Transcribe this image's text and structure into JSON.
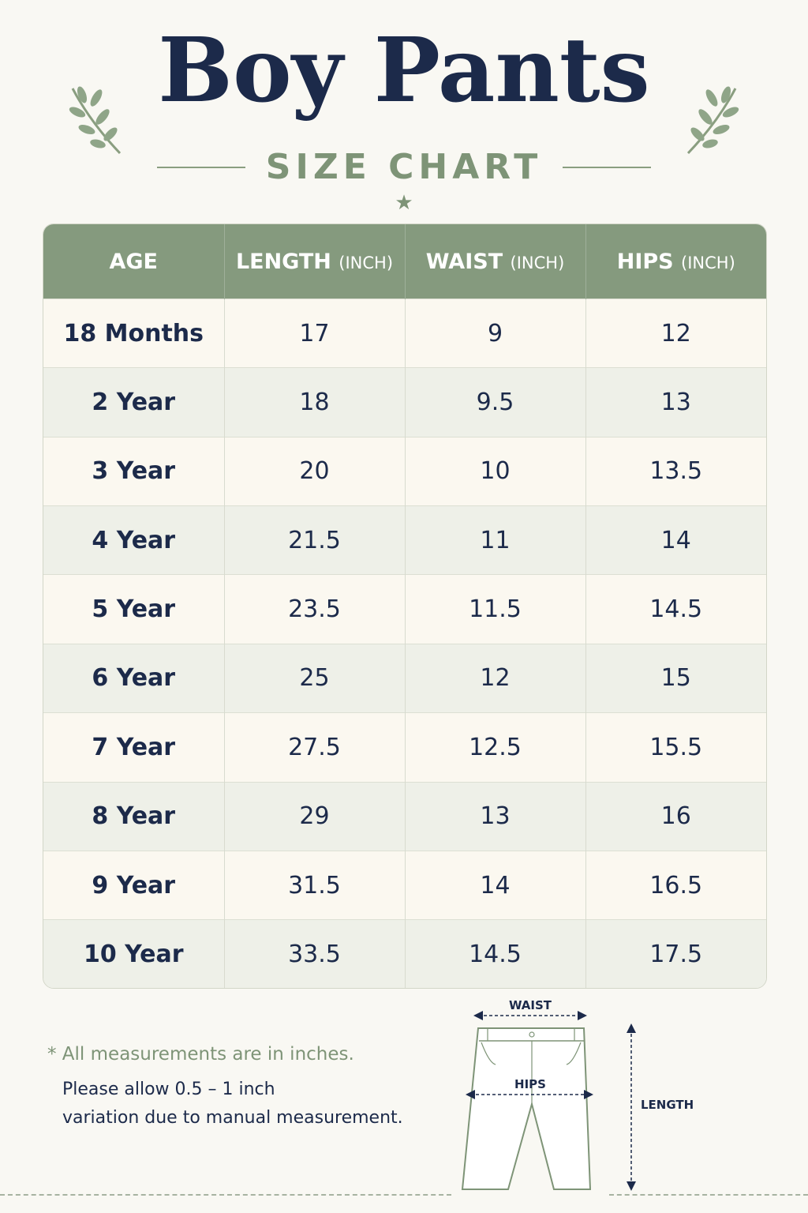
{
  "header": {
    "title": "Boy Pants",
    "subtitle": "SIZE CHART"
  },
  "table": {
    "columns": [
      {
        "label": "AGE",
        "unit": ""
      },
      {
        "label": "LENGTH",
        "unit": "(INCH)"
      },
      {
        "label": "WAIST",
        "unit": "(INCH)"
      },
      {
        "label": "HIPS",
        "unit": "(INCH)"
      }
    ],
    "rows": [
      [
        "18 Months",
        "17",
        "9",
        "12"
      ],
      [
        "2 Year",
        "18",
        "9.5",
        "13"
      ],
      [
        "3 Year",
        "20",
        "10",
        "13.5"
      ],
      [
        "4 Year",
        "21.5",
        "11",
        "14"
      ],
      [
        "5 Year",
        "23.5",
        "11.5",
        "14.5"
      ],
      [
        "6 Year",
        "25",
        "12",
        "15"
      ],
      [
        "7 Year",
        "27.5",
        "12.5",
        "15.5"
      ],
      [
        "8 Year",
        "29",
        "13",
        "16"
      ],
      [
        "9 Year",
        "31.5",
        "14",
        "16.5"
      ],
      [
        "10 Year",
        "33.5",
        "14.5",
        "17.5"
      ]
    ]
  },
  "note": {
    "line1": "* All measurements are in inches.",
    "line2": "Please allow 0.5 – 1 inch",
    "line3": "variation due to manual measurement."
  },
  "diagram": {
    "waist_label": "WAIST",
    "hips_label": "HIPS",
    "length_label": "LENGTH"
  },
  "colors": {
    "accent": "#859a7e",
    "title": "#1c2a4a",
    "background": "#f9f8f3"
  }
}
